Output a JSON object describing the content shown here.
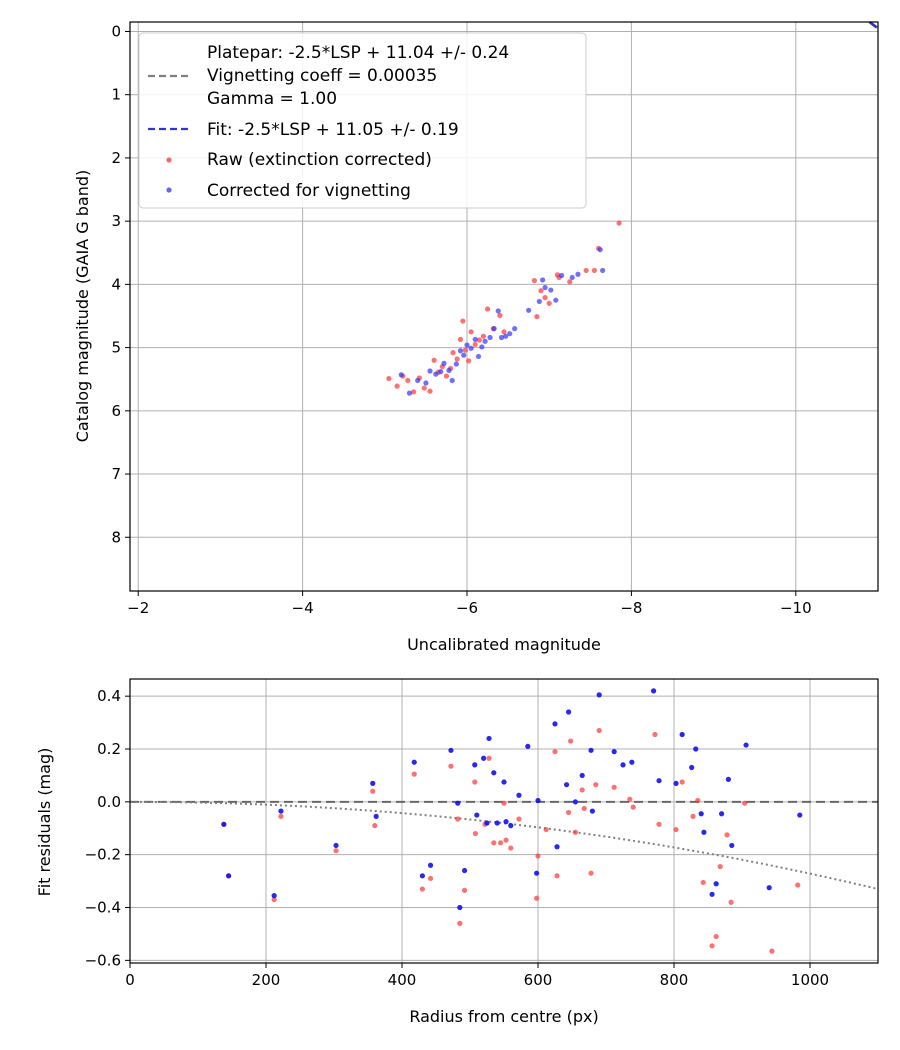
{
  "chart_data": [
    {
      "type": "scatter",
      "xlabel": "Uncalibrated magnitude",
      "ylabel": "Catalog magnitude (GAIA G band)",
      "xlim": [
        -1.9,
        -11.0
      ],
      "ylim": [
        8.85,
        -0.15
      ],
      "xticks": [
        -2,
        -4,
        -6,
        -8,
        -10
      ],
      "xtick_labels": [
        "−2",
        "−4",
        "−6",
        "−8",
        "−10"
      ],
      "yticks": [
        0,
        1,
        2,
        3,
        4,
        5,
        6,
        7,
        8
      ],
      "ytick_labels": [
        "0",
        "1",
        "2",
        "3",
        "4",
        "5",
        "6",
        "7",
        "8"
      ],
      "grid": true,
      "legend_position": "top-left",
      "legend": [
        {
          "label": "Platepar: -2.5*LSP + 11.04 +/- 0.24",
          "style": "none"
        },
        {
          "label": "Vignetting coeff = 0.00035",
          "style": "dashed",
          "color": "#808080"
        },
        {
          "label": "Gamma = 1.00",
          "style": "none"
        },
        {
          "label": "Fit: -2.5*LSP + 11.05 +/- 0.19",
          "style": "dashed",
          "color": "#3333dd"
        },
        {
          "label": "Raw (extinction corrected)",
          "style": "point",
          "color": "#ff3333"
        },
        {
          "label": "Corrected for vignetting",
          "style": "point",
          "color": "#3333ff"
        }
      ],
      "lines": [
        {
          "name": "Platepar",
          "slope": -1,
          "intercept": -11.04,
          "color": "#808080"
        },
        {
          "name": "Fit",
          "slope": -1,
          "intercept": -11.05,
          "color": "#2222cc"
        }
      ],
      "series": [
        {
          "name": "Raw (extinction corrected)",
          "color": "#ff3333",
          "points": [
            [
              -5.05,
              5.49
            ],
            [
              -5.15,
              5.61
            ],
            [
              -5.22,
              5.45
            ],
            [
              -5.28,
              5.52
            ],
            [
              -5.35,
              5.7
            ],
            [
              -5.42,
              5.48
            ],
            [
              -5.48,
              5.64
            ],
            [
              -5.55,
              5.69
            ],
            [
              -5.6,
              5.2
            ],
            [
              -5.65,
              5.39
            ],
            [
              -5.7,
              5.3
            ],
            [
              -5.75,
              5.45
            ],
            [
              -5.8,
              5.33
            ],
            [
              -5.83,
              5.08
            ],
            [
              -5.88,
              5.18
            ],
            [
              -5.92,
              4.87
            ],
            [
              -5.95,
              4.58
            ],
            [
              -5.98,
              5.04
            ],
            [
              -6.02,
              5.21
            ],
            [
              -6.05,
              4.75
            ],
            [
              -6.1,
              4.95
            ],
            [
              -6.15,
              4.88
            ],
            [
              -6.2,
              4.82
            ],
            [
              -6.25,
              4.39
            ],
            [
              -6.32,
              4.7
            ],
            [
              -6.4,
              4.49
            ],
            [
              -6.45,
              4.75
            ],
            [
              -6.85,
              4.51
            ],
            [
              -6.82,
              3.94
            ],
            [
              -6.9,
              4.1
            ],
            [
              -6.95,
              4.21
            ],
            [
              -7.0,
              4.3
            ],
            [
              -7.1,
              3.85
            ],
            [
              -7.12,
              3.89
            ],
            [
              -7.25,
              3.96
            ],
            [
              -7.45,
              3.78
            ],
            [
              -7.55,
              3.78
            ],
            [
              -7.6,
              3.43
            ],
            [
              -7.85,
              3.03
            ]
          ]
        },
        {
          "name": "Corrected for vignetting",
          "color": "#3333ff",
          "points": [
            [
              -5.2,
              5.43
            ],
            [
              -5.3,
              5.72
            ],
            [
              -5.4,
              5.52
            ],
            [
              -5.5,
              5.56
            ],
            [
              -5.55,
              5.37
            ],
            [
              -5.62,
              5.42
            ],
            [
              -5.68,
              5.38
            ],
            [
              -5.72,
              5.25
            ],
            [
              -5.78,
              5.36
            ],
            [
              -5.82,
              5.52
            ],
            [
              -5.87,
              5.26
            ],
            [
              -5.92,
              5.05
            ],
            [
              -5.96,
              5.12
            ],
            [
              -6.0,
              4.96
            ],
            [
              -6.05,
              5.01
            ],
            [
              -6.1,
              4.87
            ],
            [
              -6.14,
              5.14
            ],
            [
              -6.18,
              4.99
            ],
            [
              -6.22,
              4.9
            ],
            [
              -6.28,
              4.84
            ],
            [
              -6.33,
              4.7
            ],
            [
              -6.38,
              4.42
            ],
            [
              -6.42,
              4.84
            ],
            [
              -6.47,
              4.82
            ],
            [
              -6.52,
              4.78
            ],
            [
              -6.58,
              4.7
            ],
            [
              -6.75,
              4.41
            ],
            [
              -6.88,
              4.27
            ],
            [
              -6.92,
              3.93
            ],
            [
              -6.95,
              4.05
            ],
            [
              -7.02,
              4.09
            ],
            [
              -7.08,
              4.25
            ],
            [
              -7.15,
              3.86
            ],
            [
              -7.28,
              3.89
            ],
            [
              -7.35,
              3.84
            ],
            [
              -7.62,
              3.45
            ],
            [
              -7.65,
              3.78
            ]
          ]
        }
      ]
    },
    {
      "type": "scatter",
      "xlabel": "Radius from centre (px)",
      "ylabel": "Fit residuals (mag)",
      "xlim": [
        0,
        1100
      ],
      "ylim": [
        -0.61,
        0.465
      ],
      "xticks": [
        0,
        200,
        400,
        600,
        800,
        1000
      ],
      "xtick_labels": [
        "0",
        "200",
        "400",
        "600",
        "800",
        "1000"
      ],
      "yticks": [
        0.4,
        0.2,
        0.0,
        -0.2,
        -0.4,
        -0.6
      ],
      "ytick_labels": [
        "0.4",
        "0.2",
        "0.0",
        "−0.2",
        "−0.4",
        "−0.6"
      ],
      "grid": true,
      "reference_line": {
        "y": 0.0,
        "style": "dashed",
        "color": "#555555"
      },
      "vignetting_curve": {
        "coeff": 0.00035,
        "style": "dotted",
        "color": "#808080"
      },
      "series": [
        {
          "name": "Raw (extinction corrected)",
          "color": "#ff3333",
          "points": [
            [
              138,
              -0.085
            ],
            [
              145,
              -0.28
            ],
            [
              212,
              -0.37
            ],
            [
              222,
              -0.055
            ],
            [
              303,
              -0.185
            ],
            [
              357,
              0.04
            ],
            [
              360,
              -0.09
            ],
            [
              418,
              0.105
            ],
            [
              430,
              -0.33
            ],
            [
              442,
              -0.29
            ],
            [
              472,
              0.135
            ],
            [
              482,
              -0.065
            ],
            [
              485,
              -0.46
            ],
            [
              492,
              -0.335
            ],
            [
              507,
              0.075
            ],
            [
              508,
              -0.12
            ],
            [
              522,
              -0.085
            ],
            [
              528,
              0.165
            ],
            [
              535,
              -0.155
            ],
            [
              545,
              -0.155
            ],
            [
              550,
              -0.005
            ],
            [
              553,
              -0.145
            ],
            [
              560,
              -0.175
            ],
            [
              572,
              -0.065
            ],
            [
              598,
              -0.365
            ],
            [
              600,
              -0.205
            ],
            [
              612,
              -0.105
            ],
            [
              625,
              0.19
            ],
            [
              628,
              -0.28
            ],
            [
              645,
              -0.04
            ],
            [
              648,
              0.23
            ],
            [
              655,
              -0.115
            ],
            [
              665,
              0.045
            ],
            [
              668,
              -0.025
            ],
            [
              678,
              -0.27
            ],
            [
              685,
              0.065
            ],
            [
              690,
              0.27
            ],
            [
              712,
              0.055
            ],
            [
              735,
              0.01
            ],
            [
              740,
              -0.02
            ],
            [
              772,
              0.255
            ],
            [
              778,
              -0.085
            ],
            [
              803,
              -0.105
            ],
            [
              812,
              0.075
            ],
            [
              828,
              -0.055
            ],
            [
              835,
              0.005
            ],
            [
              843,
              -0.305
            ],
            [
              856,
              -0.545
            ],
            [
              862,
              -0.51
            ],
            [
              868,
              -0.245
            ],
            [
              878,
              -0.125
            ],
            [
              884,
              -0.38
            ],
            [
              904,
              -0.005
            ],
            [
              944,
              -0.565
            ],
            [
              982,
              -0.315
            ]
          ]
        },
        {
          "name": "Corrected for vignetting",
          "color": "#1111ee",
          "points": [
            [
              138,
              -0.085
            ],
            [
              145,
              -0.28
            ],
            [
              212,
              -0.355
            ],
            [
              222,
              -0.035
            ],
            [
              303,
              -0.165
            ],
            [
              357,
              0.07
            ],
            [
              362,
              -0.055
            ],
            [
              418,
              0.15
            ],
            [
              430,
              -0.28
            ],
            [
              442,
              -0.24
            ],
            [
              472,
              0.195
            ],
            [
              482,
              -0.005
            ],
            [
              485,
              -0.4
            ],
            [
              492,
              -0.26
            ],
            [
              507,
              0.14
            ],
            [
              510,
              -0.05
            ],
            [
              520,
              0.165
            ],
            [
              525,
              -0.08
            ],
            [
              528,
              0.24
            ],
            [
              535,
              0.11
            ],
            [
              540,
              -0.08
            ],
            [
              550,
              0.075
            ],
            [
              553,
              -0.075
            ],
            [
              560,
              -0.09
            ],
            [
              572,
              0.025
            ],
            [
              585,
              0.21
            ],
            [
              598,
              -0.27
            ],
            [
              600,
              0.005
            ],
            [
              625,
              0.295
            ],
            [
              628,
              -0.17
            ],
            [
              642,
              0.065
            ],
            [
              645,
              0.34
            ],
            [
              655,
              0.0
            ],
            [
              665,
              0.1
            ],
            [
              678,
              0.195
            ],
            [
              680,
              -0.035
            ],
            [
              690,
              0.405
            ],
            [
              712,
              0.19
            ],
            [
              725,
              0.14
            ],
            [
              738,
              0.15
            ],
            [
              770,
              0.42
            ],
            [
              778,
              0.08
            ],
            [
              803,
              0.07
            ],
            [
              812,
              0.255
            ],
            [
              826,
              0.13
            ],
            [
              832,
              0.2
            ],
            [
              840,
              -0.045
            ],
            [
              844,
              -0.115
            ],
            [
              856,
              -0.35
            ],
            [
              862,
              -0.31
            ],
            [
              870,
              -0.045
            ],
            [
              880,
              0.085
            ],
            [
              885,
              -0.165
            ],
            [
              906,
              0.215
            ],
            [
              940,
              -0.325
            ],
            [
              985,
              -0.05
            ]
          ]
        }
      ]
    }
  ]
}
